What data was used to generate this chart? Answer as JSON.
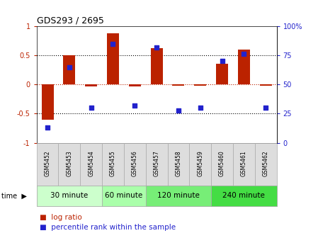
{
  "title": "GDS293 / 2695",
  "samples": [
    "GSM5452",
    "GSM5453",
    "GSM5454",
    "GSM5455",
    "GSM5456",
    "GSM5457",
    "GSM5458",
    "GSM5459",
    "GSM5460",
    "GSM5461",
    "GSM5462"
  ],
  "log_ratio": [
    -0.6,
    0.5,
    -0.03,
    0.88,
    -0.03,
    0.62,
    -0.02,
    -0.02,
    0.35,
    0.6,
    -0.02
  ],
  "percentile": [
    13,
    65,
    30,
    85,
    32,
    82,
    28,
    30,
    70,
    76,
    30
  ],
  "bar_color": "#bb2200",
  "dot_color": "#2222cc",
  "time_groups": [
    {
      "label": "30 minute",
      "start": 0,
      "end": 3,
      "color": "#ccffcc"
    },
    {
      "label": "60 minute",
      "start": 3,
      "end": 5,
      "color": "#aaffaa"
    },
    {
      "label": "120 minute",
      "start": 5,
      "end": 8,
      "color": "#77ee77"
    },
    {
      "label": "240 minute",
      "start": 8,
      "end": 11,
      "color": "#44dd44"
    }
  ],
  "ylim_left": [
    -1,
    1
  ],
  "ylim_right": [
    0,
    100
  ],
  "yticks_left": [
    -1,
    -0.5,
    0,
    0.5,
    1
  ],
  "yticks_right": [
    0,
    25,
    50,
    75,
    100
  ],
  "ytick_labels_right": [
    "0",
    "25",
    "50",
    "75",
    "100%"
  ],
  "hlines_black": [
    -0.5,
    0.5
  ],
  "hline_red": 0,
  "bg_color": "#ffffff"
}
